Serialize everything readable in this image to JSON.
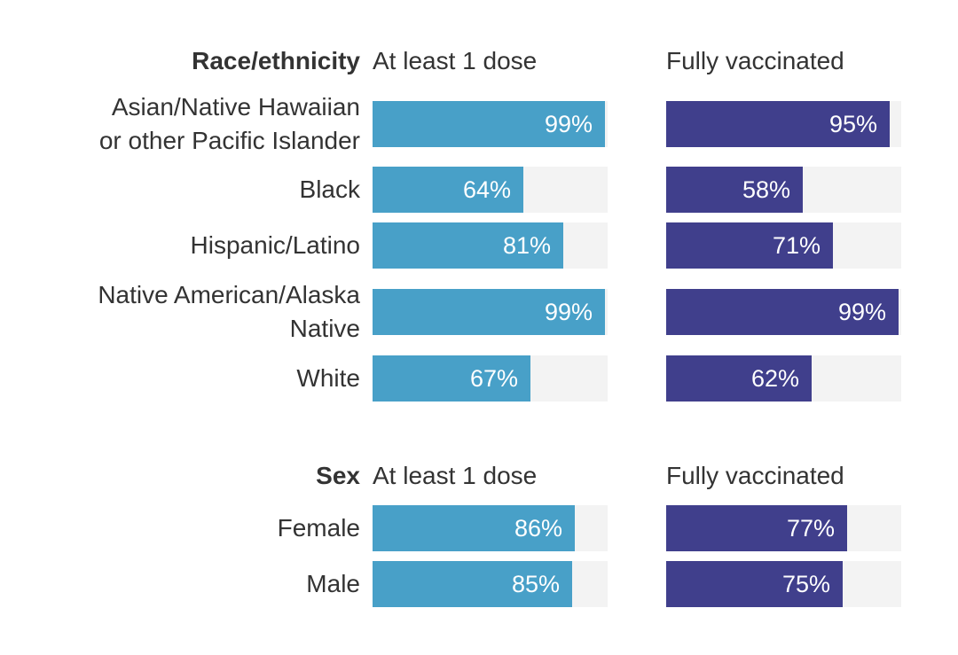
{
  "colors": {
    "dose": "#48a0c8",
    "full": "#403f8c",
    "track": "#f3f3f3"
  },
  "chart_data": [
    {
      "type": "bar",
      "group_label": "Race/ethnicity",
      "series_labels": [
        "At least 1 dose",
        "Fully vaccinated"
      ],
      "categories": [
        [
          "Asian/Native Hawaiian",
          "or other Pacific Islander"
        ],
        [
          "Black"
        ],
        [
          "Hispanic/Latino"
        ],
        [
          "Native American/Alaska",
          "Native"
        ],
        [
          "White"
        ]
      ],
      "series": [
        {
          "name": "At least 1 dose",
          "values": [
            99,
            64,
            81,
            99,
            67
          ],
          "labels": [
            "99%",
            "64%",
            "81%",
            "99%",
            "67%"
          ]
        },
        {
          "name": "Fully vaccinated",
          "values": [
            95,
            58,
            71,
            99,
            62
          ],
          "labels": [
            "95%",
            "58%",
            "71%",
            "99%",
            "62%"
          ]
        }
      ],
      "xlim": [
        0,
        100
      ]
    },
    {
      "type": "bar",
      "group_label": "Sex",
      "series_labels": [
        "At least 1 dose",
        "Fully vaccinated"
      ],
      "categories": [
        [
          "Female"
        ],
        [
          "Male"
        ]
      ],
      "series": [
        {
          "name": "At least 1 dose",
          "values": [
            86,
            85
          ],
          "labels": [
            "86%",
            "85%"
          ]
        },
        {
          "name": "Fully vaccinated",
          "values": [
            77,
            75
          ],
          "labels": [
            "77%",
            "75%"
          ]
        }
      ],
      "xlim": [
        0,
        100
      ]
    }
  ]
}
